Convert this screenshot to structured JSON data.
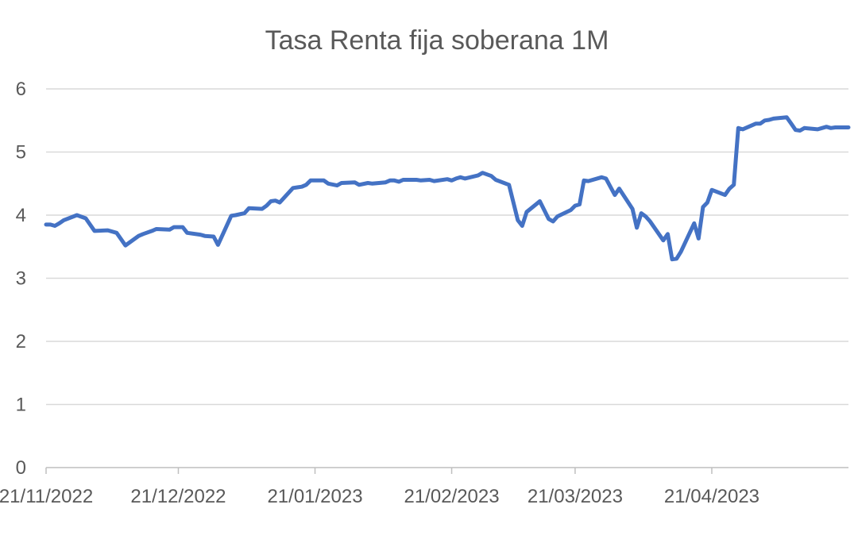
{
  "chart_data": {
    "type": "line",
    "title": "Tasa Renta fija soberana 1M",
    "xlabel": "",
    "ylabel": "",
    "ylim": [
      0,
      6
    ],
    "yticks": [
      "0",
      "1",
      "2",
      "3",
      "4",
      "5",
      "6"
    ],
    "xlim": [
      "2022-11-21",
      "2023-05-22"
    ],
    "xticks": [
      {
        "date": "2022-11-21",
        "label": "21/11/2022"
      },
      {
        "date": "2022-12-21",
        "label": "21/12/2022"
      },
      {
        "date": "2023-01-21",
        "label": "21/01/2023"
      },
      {
        "date": "2023-02-21",
        "label": "21/02/2023"
      },
      {
        "date": "2023-03-21",
        "label": "21/03/2023"
      },
      {
        "date": "2023-04-21",
        "label": "21/04/2023"
      }
    ],
    "grid": true,
    "legend": "none",
    "line_color": "#4472C4",
    "series": [
      {
        "x": [
          "2022-11-21",
          "2022-11-22",
          "2022-11-23",
          "2022-11-24",
          "2022-11-25",
          "2022-11-28",
          "2022-11-30",
          "2022-12-02",
          "2022-12-05",
          "2022-12-07",
          "2022-12-09",
          "2022-12-12",
          "2022-12-13",
          "2022-12-15",
          "2022-12-16",
          "2022-12-19",
          "2022-12-20",
          "2022-12-22",
          "2022-12-23",
          "2022-12-26",
          "2022-12-27",
          "2022-12-29",
          "2022-12-30",
          "2023-01-02",
          "2023-01-03",
          "2023-01-05",
          "2023-01-06",
          "2023-01-09",
          "2023-01-10",
          "2023-01-11",
          "2023-01-12",
          "2023-01-13",
          "2023-01-16",
          "2023-01-17",
          "2023-01-18",
          "2023-01-19",
          "2023-01-20",
          "2023-01-23",
          "2023-01-24",
          "2023-01-26",
          "2023-01-27",
          "2023-01-30",
          "2023-01-31",
          "2023-02-02",
          "2023-02-03",
          "2023-02-06",
          "2023-02-07",
          "2023-02-08",
          "2023-02-09",
          "2023-02-10",
          "2023-02-13",
          "2023-02-14",
          "2023-02-16",
          "2023-02-17",
          "2023-02-20",
          "2023-02-21",
          "2023-02-22",
          "2023-02-23",
          "2023-02-24",
          "2023-02-27",
          "2023-02-28",
          "2023-03-02",
          "2023-03-03",
          "2023-03-06",
          "2023-03-08",
          "2023-03-09",
          "2023-03-10",
          "2023-03-13",
          "2023-03-15",
          "2023-03-16",
          "2023-03-17",
          "2023-03-20",
          "2023-03-21",
          "2023-03-22",
          "2023-03-23",
          "2023-03-24",
          "2023-03-27",
          "2023-03-28",
          "2023-03-29",
          "2023-03-30",
          "2023-03-31",
          "2023-04-03",
          "2023-04-04",
          "2023-04-05",
          "2023-04-06",
          "2023-04-07",
          "2023-04-10",
          "2023-04-11",
          "2023-04-12",
          "2023-04-13",
          "2023-04-14",
          "2023-04-17",
          "2023-04-18",
          "2023-04-19",
          "2023-04-20",
          "2023-04-21",
          "2023-04-24",
          "2023-04-25",
          "2023-04-26",
          "2023-04-27",
          "2023-04-28",
          "2023-05-01",
          "2023-05-02",
          "2023-05-03",
          "2023-05-04",
          "2023-05-05",
          "2023-05-08",
          "2023-05-09",
          "2023-05-10",
          "2023-05-11",
          "2023-05-12",
          "2023-05-15",
          "2023-05-16",
          "2023-05-17",
          "2023-05-18",
          "2023-05-19",
          "2023-05-22"
        ],
        "values": [
          3.85,
          3.85,
          3.83,
          3.87,
          3.92,
          4.0,
          3.95,
          3.75,
          3.76,
          3.72,
          3.52,
          3.67,
          3.7,
          3.75,
          3.78,
          3.77,
          3.81,
          3.81,
          3.72,
          3.69,
          3.67,
          3.66,
          3.53,
          3.99,
          4.0,
          4.03,
          4.11,
          4.1,
          4.15,
          4.22,
          4.23,
          4.2,
          4.43,
          4.44,
          4.45,
          4.48,
          4.55,
          4.55,
          4.5,
          4.47,
          4.51,
          4.52,
          4.48,
          4.51,
          4.5,
          4.52,
          4.55,
          4.55,
          4.53,
          4.56,
          4.56,
          4.55,
          4.56,
          4.54,
          4.57,
          4.55,
          4.58,
          4.6,
          4.58,
          4.63,
          4.67,
          4.62,
          4.56,
          4.48,
          3.92,
          3.83,
          4.05,
          4.22,
          3.94,
          3.9,
          3.98,
          4.08,
          4.15,
          4.17,
          4.55,
          4.54,
          4.6,
          4.58,
          4.45,
          4.32,
          4.42,
          4.1,
          3.8,
          4.03,
          3.98,
          3.9,
          3.6,
          3.7,
          3.3,
          3.31,
          3.42,
          3.87,
          3.63,
          4.13,
          4.2,
          4.4,
          4.32,
          4.42,
          4.48,
          5.38,
          5.36,
          5.45,
          5.45,
          5.5,
          5.51,
          5.53,
          5.55,
          5.45,
          5.35,
          5.34,
          5.38,
          5.36,
          5.38,
          5.4,
          5.38,
          5.39,
          5.39
        ]
      }
    ]
  }
}
